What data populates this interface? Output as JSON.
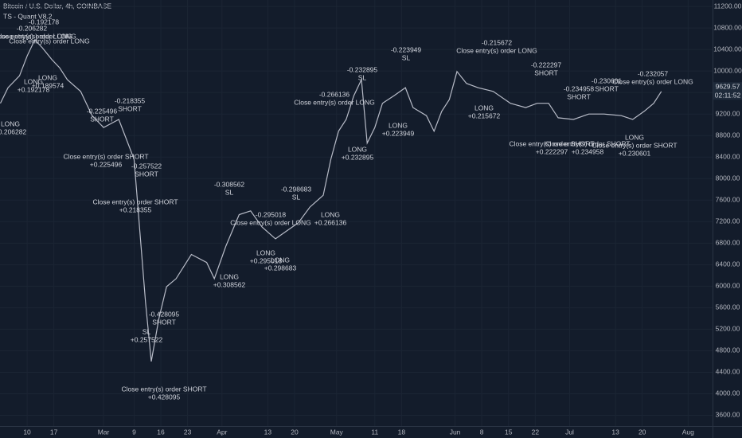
{
  "chart_data": {
    "type": "line",
    "title": "Bitcoin / U.S. Dollar, 4h, COINBASE",
    "subtitle": "TS - Quant V8.2",
    "color": "#b8bcc8",
    "x": [
      2,
      4,
      7,
      9,
      11,
      13,
      15.5,
      17.5,
      19.5,
      23,
      26,
      29,
      33,
      37,
      40,
      41.5,
      43.5,
      45.5,
      48,
      52,
      56,
      58,
      61,
      64.5,
      67.5,
      70.5,
      74,
      77,
      80,
      83,
      86.5,
      88.5,
      90.5,
      92.5,
      94.5,
      96.5,
      98,
      100,
      102,
      105,
      108,
      110,
      113.5,
      115.5,
      117.5,
      119.5,
      121.5,
      124,
      127,
      131,
      135.5,
      139.5,
      142.5,
      145.5,
      148,
      152,
      156,
      160,
      164.5,
      167.5,
      170.5,
      173,
      175
    ],
    "values": [
      9400,
      9690,
      9910,
      10280,
      10580,
      10430,
      10210,
      10060,
      9840,
      9620,
      9170,
      8950,
      9100,
      8360,
      5700,
      4600,
      5400,
      5990,
      6140,
      6590,
      6440,
      6140,
      6740,
      7330,
      7400,
      7100,
      6880,
      7030,
      7180,
      7470,
      7690,
      8360,
      8880,
      9100,
      9540,
      9840,
      8660,
      8950,
      9400,
      9540,
      9690,
      9320,
      9170,
      8880,
      9250,
      9470,
      9990,
      9770,
      9690,
      9620,
      9400,
      9320,
      9400,
      9400,
      9130,
      9100,
      9200,
      9200,
      9170,
      9100,
      9250,
      9400,
      9620
    ],
    "xlim": [
      1.9,
      188.4
    ],
    "ylim": [
      3400,
      11320
    ],
    "xticks": [
      {
        "value": 9,
        "label": "10"
      },
      {
        "value": 16,
        "label": "17"
      },
      {
        "value": 29,
        "label": "Mar"
      },
      {
        "value": 37,
        "label": "9"
      },
      {
        "value": 44,
        "label": "16"
      },
      {
        "value": 51,
        "label": "23"
      },
      {
        "value": 60,
        "label": "Apr"
      },
      {
        "value": 72,
        "label": "13"
      },
      {
        "value": 79,
        "label": "20"
      },
      {
        "value": 90,
        "label": "May"
      },
      {
        "value": 100,
        "label": "11"
      },
      {
        "value": 107,
        "label": "18"
      },
      {
        "value": 121,
        "label": "Jun"
      },
      {
        "value": 128,
        "label": "8"
      },
      {
        "value": 135,
        "label": "15"
      },
      {
        "value": 142,
        "label": "22"
      },
      {
        "value": 151,
        "label": "Jul"
      },
      {
        "value": 163,
        "label": "13"
      },
      {
        "value": 170,
        "label": "20"
      },
      {
        "value": 182,
        "label": "Aug"
      }
    ],
    "yticks": [
      {
        "value": 3600,
        "label": "3600.00"
      },
      {
        "value": 4000,
        "label": "4000.00"
      },
      {
        "value": 4400,
        "label": "4400.00"
      },
      {
        "value": 4800,
        "label": "4800.00"
      },
      {
        "value": 5200,
        "label": "5200.00"
      },
      {
        "value": 5600,
        "label": "5600.00"
      },
      {
        "value": 6000,
        "label": "6000.00"
      },
      {
        "value": 6400,
        "label": "6400.00"
      },
      {
        "value": 6800,
        "label": "6800.00"
      },
      {
        "value": 7200,
        "label": "7200.00"
      },
      {
        "value": 7600,
        "label": "7600.00"
      },
      {
        "value": 8000,
        "label": "8000.00"
      },
      {
        "value": 8400,
        "label": "8400.00"
      },
      {
        "value": 8800,
        "label": "8800.00"
      },
      {
        "value": 9200,
        "label": "9200.00"
      },
      {
        "value": 9600,
        "label": "9600.00"
      },
      {
        "value": 10000,
        "label": "10000.00"
      },
      {
        "value": 10400,
        "label": "10400.00"
      },
      {
        "value": 10800,
        "label": "10800.00"
      },
      {
        "value": 11200,
        "label": "11200.00"
      }
    ],
    "last_price": 9629.57,
    "countdown": "02:11:52",
    "annotations": [
      [
        "-0.192178"
      ],
      [
        "-0.206282",
        "Close entry(s) order LONG"
      ],
      [
        "Close entry(s) order LONG"
      ],
      [
        "Close entry(s) order LONG"
      ],
      [
        "LONG",
        "+0.192178"
      ],
      [
        "LONG",
        "+0.189574"
      ],
      [
        "LONG",
        "+0.206282"
      ],
      [
        "-0.225496",
        "SHORT"
      ],
      [
        "-0.218355",
        "SHORT"
      ],
      [
        "Close entry(s) order SHORT",
        "+0.225496"
      ],
      [
        "-0.257522",
        "SHORT"
      ],
      [
        "Close entry(s) order SHORT",
        "+0.218355"
      ],
      [
        "-0.308562",
        "SL"
      ],
      [
        "-0.295018",
        "Close entry(s) order LONG"
      ],
      [
        "LONG",
        "+0.295018"
      ],
      [
        "-0.298683",
        "SL"
      ],
      [
        "LONG",
        "+0.298683"
      ],
      [
        "LONG",
        "+0.266136"
      ],
      [
        "LONG",
        "+0.308562"
      ],
      [
        "-0.428095",
        "SHORT"
      ],
      [
        "SL",
        "+0.257522"
      ],
      [
        "Close entry(s) order SHORT",
        "+0.428095"
      ],
      [
        "-0.266136",
        "Close entry(s) order LONG"
      ],
      [
        "-0.232895",
        "SL"
      ],
      [
        "LONG",
        "+0.232895"
      ],
      [
        "-0.223949",
        "SL"
      ],
      [
        "LONG",
        "+0.223949"
      ],
      [
        "-0.215672",
        "Close entry(s) order LONG"
      ],
      [
        "LONG",
        "+0.215672"
      ],
      [
        "-0.222297",
        "SHORT"
      ],
      [
        "-0.234958",
        "SHORT"
      ],
      [
        "-0.230601",
        "SHORT"
      ],
      [
        "-0.232057",
        "Close entry(s) order LONG"
      ],
      [
        "Close entry(s) order SHORT",
        "+0.222297"
      ],
      [
        "Close entry(s) order SHORT",
        "+0.234958"
      ],
      [
        "LONG",
        "Close entry(s) order SHORT",
        "+0.230601"
      ]
    ]
  }
}
